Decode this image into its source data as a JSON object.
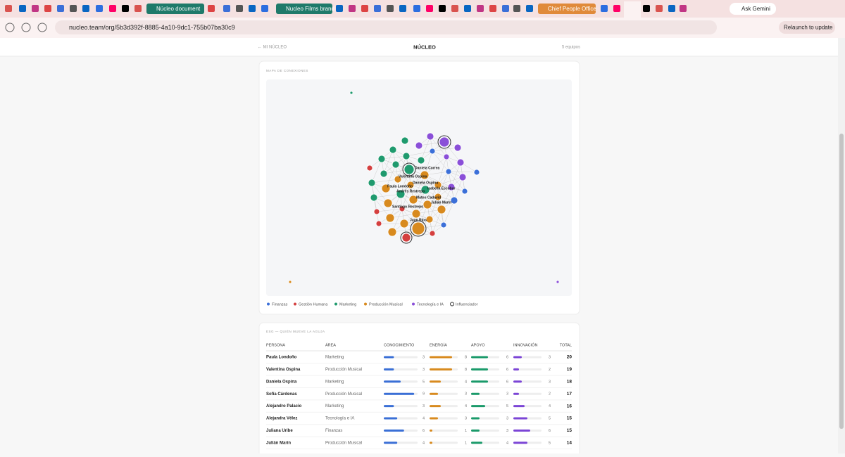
{
  "browser": {
    "tabs": [
      "Núcleo document",
      "Nucleo Films brand",
      "Chief People Office"
    ],
    "ask_gemini": "Ask Gemini",
    "url": "nucleo.team/org/5b3d392f-8885-4a10-9dc1-755b07ba30c9",
    "relaunch": "Relaunch to update"
  },
  "header": {
    "back": "← MI NÚCLEO",
    "title": "NÚCLEO",
    "teams": "5 equipos"
  },
  "map": {
    "title": "MAPA DE CONEXIONES",
    "node_labels": [
      "Daniela Correa",
      "Valentina Ospina",
      "Daniela Ospina",
      "Paula Londoño",
      "Andrés Restrepo",
      "Isabella Escobar",
      "Mateo Cadavid",
      "Julián Marín",
      "Santiago Restrepo",
      "Juan Ríos"
    ],
    "legend": [
      {
        "name": "Finanzas",
        "color": "#3b6fd8"
      },
      {
        "name": "Gestión Humana",
        "color": "#d43f3f"
      },
      {
        "name": "Marketing",
        "color": "#1f9a6e"
      },
      {
        "name": "Producción Musical",
        "color": "#d88a1e"
      },
      {
        "name": "Tecnología e IA",
        "color": "#8a4fd8"
      },
      {
        "name": "Influenciador",
        "color": "#333333"
      }
    ]
  },
  "table": {
    "title": "ESG — QUIÉN MUEVE LA AGUJA",
    "columns": [
      "PERSONA",
      "ÁREA",
      "CONOCIMIENTO",
      "ENERGÍA",
      "APOYO",
      "INNOVACIÓN",
      "TOTAL"
    ],
    "bar_colors": [
      "#3a6fd6",
      "#d88a1e",
      "#1a9a6a",
      "#7b45d6"
    ],
    "rows": [
      [
        "Paula Londoño",
        "Marketing",
        3,
        8,
        6,
        3,
        20
      ],
      [
        "Valentina Ospina",
        "Producción Musical",
        3,
        8,
        6,
        2,
        19
      ],
      [
        "Daniela Ospina",
        "Marketing",
        5,
        4,
        6,
        3,
        18
      ],
      [
        "Sofía Cárdenas",
        "Producción Musical",
        9,
        3,
        3,
        2,
        17
      ],
      [
        "Alejandro Palacio",
        "Marketing",
        3,
        4,
        5,
        4,
        16
      ],
      [
        "Alejandra Vélez",
        "Tecnología e IA",
        4,
        3,
        3,
        5,
        15
      ],
      [
        "Juliana Uribe",
        "Finanzas",
        6,
        1,
        3,
        6,
        15
      ],
      [
        "Julián Marín",
        "Producción Musical",
        4,
        1,
        4,
        5,
        14
      ]
    ]
  }
}
